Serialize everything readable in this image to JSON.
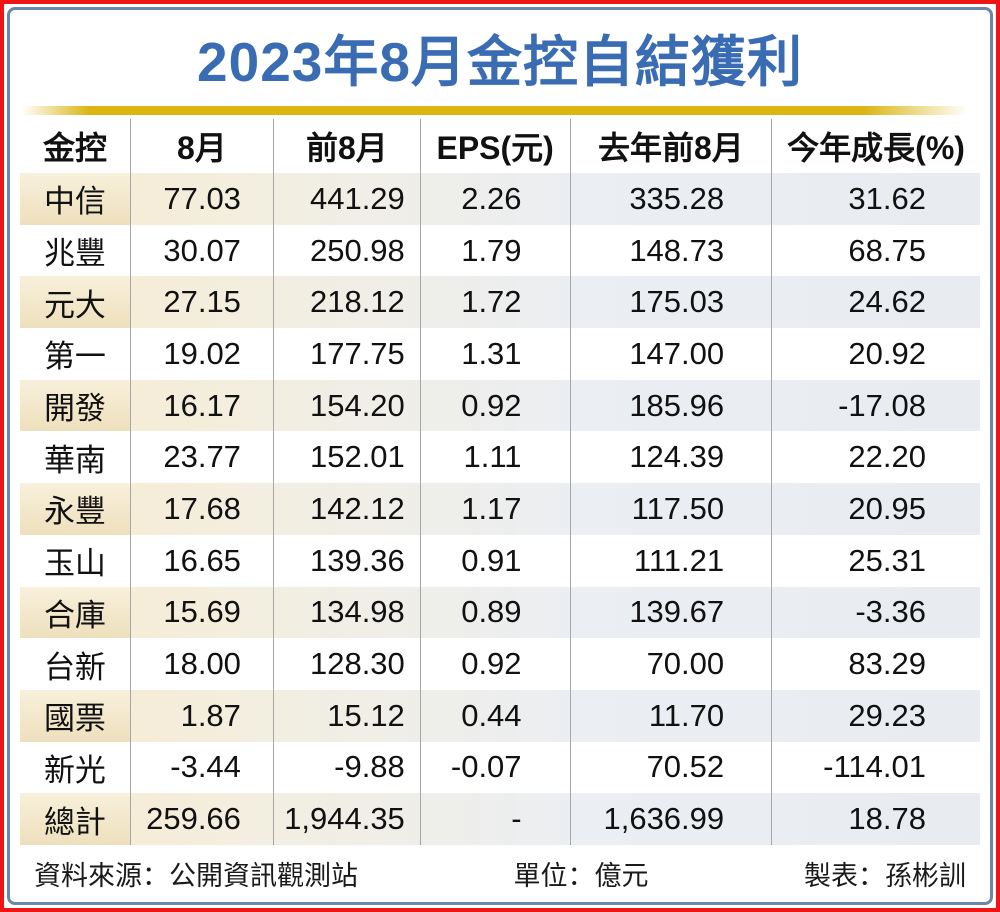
{
  "title": "2023年8月金控自結獲利",
  "table": {
    "columns": [
      "金控",
      "8月",
      "前8月",
      "EPS(元)",
      "去年前8月",
      "今年成長(%)"
    ],
    "rows": [
      [
        "中信",
        "77.03",
        "441.29",
        "2.26",
        "335.28",
        "31.62"
      ],
      [
        "兆豐",
        "30.07",
        "250.98",
        "1.79",
        "148.73",
        "68.75"
      ],
      [
        "元大",
        "27.15",
        "218.12",
        "1.72",
        "175.03",
        "24.62"
      ],
      [
        "第一",
        "19.02",
        "177.75",
        "1.31",
        "147.00",
        "20.92"
      ],
      [
        "開發",
        "16.17",
        "154.20",
        "0.92",
        "185.96",
        "-17.08"
      ],
      [
        "華南",
        "23.77",
        "152.01",
        "1.11",
        "124.39",
        "22.20"
      ],
      [
        "永豐",
        "17.68",
        "142.12",
        "1.17",
        "117.50",
        "20.95"
      ],
      [
        "玉山",
        "16.65",
        "139.36",
        "0.91",
        "111.21",
        "25.31"
      ],
      [
        "合庫",
        "15.69",
        "134.98",
        "0.89",
        "139.67",
        "-3.36"
      ],
      [
        "台新",
        "18.00",
        "128.30",
        "0.92",
        "70.00",
        "83.29"
      ],
      [
        "國票",
        "1.87",
        "15.12",
        "0.44",
        "11.70",
        "29.23"
      ],
      [
        "新光",
        "-3.44",
        "-9.88",
        "-0.07",
        "70.52",
        "-114.01"
      ],
      [
        "總計",
        "259.66",
        "1,944.35",
        "-",
        "1,636.99",
        "18.78"
      ]
    ]
  },
  "footer": {
    "source": "資料來源：公開資訊觀測站",
    "unit": "單位：億元",
    "credit": "製表：孫彬訓"
  },
  "colors": {
    "title_blue": "#3a6cb4",
    "divider_gold": "#dcb513",
    "frame_red": "#f01515",
    "frame_blue": "#6e86a5",
    "row_cream": "#f3e7cb",
    "row_bluegray": "#e9edf2",
    "separator_gray": "#a6a6a6"
  },
  "chart_data": {
    "type": "table",
    "title": "2023年8月金控自結獲利",
    "unit": "億元 (NT$100M); EPS in 元",
    "columns": [
      "金控",
      "8月",
      "前8月",
      "EPS(元)",
      "去年前8月",
      "今年成長(%)"
    ],
    "rows": [
      {
        "company": "中信",
        "aug": 77.03,
        "first8m": 441.29,
        "eps": 2.26,
        "last_year_first8m": 335.28,
        "yoy_growth_pct": 31.62
      },
      {
        "company": "兆豐",
        "aug": 30.07,
        "first8m": 250.98,
        "eps": 1.79,
        "last_year_first8m": 148.73,
        "yoy_growth_pct": 68.75
      },
      {
        "company": "元大",
        "aug": 27.15,
        "first8m": 218.12,
        "eps": 1.72,
        "last_year_first8m": 175.03,
        "yoy_growth_pct": 24.62
      },
      {
        "company": "第一",
        "aug": 19.02,
        "first8m": 177.75,
        "eps": 1.31,
        "last_year_first8m": 147.0,
        "yoy_growth_pct": 20.92
      },
      {
        "company": "開發",
        "aug": 16.17,
        "first8m": 154.2,
        "eps": 0.92,
        "last_year_first8m": 185.96,
        "yoy_growth_pct": -17.08
      },
      {
        "company": "華南",
        "aug": 23.77,
        "first8m": 152.01,
        "eps": 1.11,
        "last_year_first8m": 124.39,
        "yoy_growth_pct": 22.2
      },
      {
        "company": "永豐",
        "aug": 17.68,
        "first8m": 142.12,
        "eps": 1.17,
        "last_year_first8m": 117.5,
        "yoy_growth_pct": 20.95
      },
      {
        "company": "玉山",
        "aug": 16.65,
        "first8m": 139.36,
        "eps": 0.91,
        "last_year_first8m": 111.21,
        "yoy_growth_pct": 25.31
      },
      {
        "company": "合庫",
        "aug": 15.69,
        "first8m": 134.98,
        "eps": 0.89,
        "last_year_first8m": 139.67,
        "yoy_growth_pct": -3.36
      },
      {
        "company": "台新",
        "aug": 18.0,
        "first8m": 128.3,
        "eps": 0.92,
        "last_year_first8m": 70.0,
        "yoy_growth_pct": 83.29
      },
      {
        "company": "國票",
        "aug": 1.87,
        "first8m": 15.12,
        "eps": 0.44,
        "last_year_first8m": 11.7,
        "yoy_growth_pct": 29.23
      },
      {
        "company": "新光",
        "aug": -3.44,
        "first8m": -9.88,
        "eps": -0.07,
        "last_year_first8m": 70.52,
        "yoy_growth_pct": -114.01
      },
      {
        "company": "總計",
        "aug": 259.66,
        "first8m": 1944.35,
        "eps": null,
        "last_year_first8m": 1636.99,
        "yoy_growth_pct": 18.78
      }
    ]
  }
}
